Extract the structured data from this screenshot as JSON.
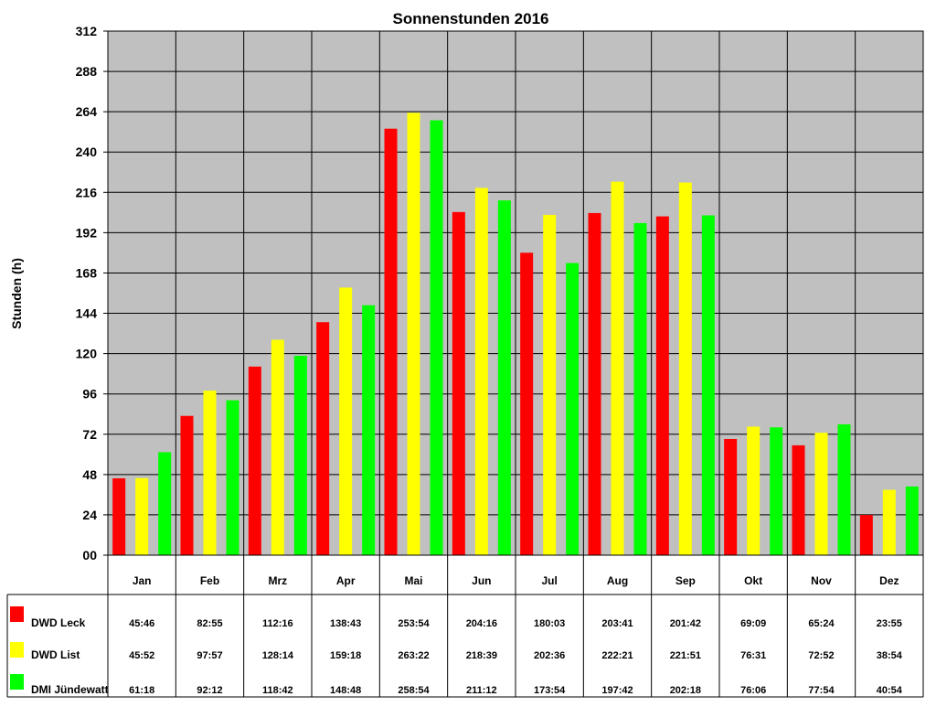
{
  "chart_data": {
    "type": "bar",
    "title": "Sonnenstunden 2016",
    "ylabel": "Stunden (h)",
    "xlabel": "",
    "ylim": [
      0,
      312
    ],
    "yticks": [
      0,
      24,
      48,
      72,
      96,
      120,
      144,
      168,
      192,
      216,
      240,
      264,
      288,
      312
    ],
    "ytick_labels": [
      "00",
      "24",
      "48",
      "72",
      "96",
      "120",
      "144",
      "168",
      "192",
      "216",
      "240",
      "264",
      "288",
      "312"
    ],
    "grid": true,
    "legend_placement": "data-table-below",
    "categories": [
      "Jan",
      "Feb",
      "Mrz",
      "Apr",
      "Mai",
      "Jun",
      "Jul",
      "Aug",
      "Sep",
      "Okt",
      "Nov",
      "Dez"
    ],
    "series": [
      {
        "name": "DWD Leck",
        "color": "#ff0000",
        "labels": [
          "45:46",
          "82:55",
          "112:16",
          "138:43",
          "253:54",
          "204:16",
          "180:03",
          "203:41",
          "201:42",
          "69:09",
          "65:24",
          "23:55"
        ],
        "values": [
          45.77,
          82.92,
          112.27,
          138.72,
          253.9,
          204.27,
          180.05,
          203.68,
          201.7,
          69.15,
          65.4,
          23.92
        ]
      },
      {
        "name": "DWD List",
        "color": "#ffff00",
        "labels": [
          "45:52",
          "97:57",
          "128:14",
          "159:18",
          "263:22",
          "218:39",
          "202:36",
          "222:21",
          "221:51",
          "76:31",
          "72:52",
          "38:54"
        ],
        "values": [
          45.87,
          97.95,
          128.23,
          159.3,
          263.37,
          218.65,
          202.6,
          222.35,
          221.85,
          76.52,
          72.87,
          38.9
        ]
      },
      {
        "name": "DMI Jündewatt",
        "color": "#00ff00",
        "labels": [
          "61:18",
          "92:12",
          "118:42",
          "148:48",
          "258:54",
          "211:12",
          "173:54",
          "197:42",
          "202:18",
          "76:06",
          "77:54",
          "40:54"
        ],
        "values": [
          61.3,
          92.2,
          118.7,
          148.8,
          258.9,
          211.2,
          173.9,
          197.7,
          202.3,
          76.1,
          77.9,
          40.9
        ]
      }
    ],
    "plot_background": "#c0c0c0",
    "grid_color": "#000000"
  }
}
